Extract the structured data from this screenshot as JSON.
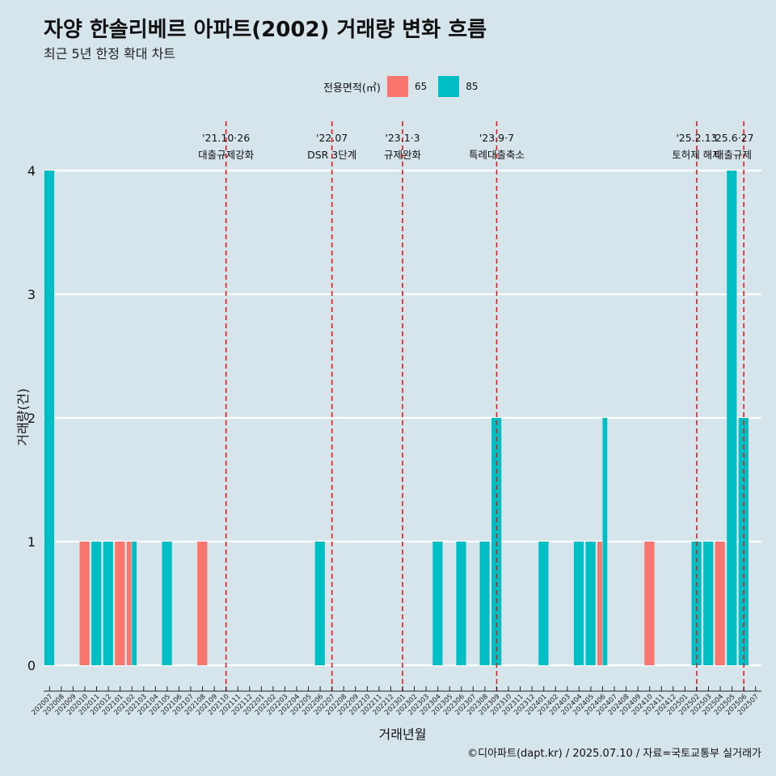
{
  "header": {
    "title": "자양 한솔리베르 아파트(2002) 거래량 변화 흐름",
    "subtitle": "최근 5년 한정 확대 차트"
  },
  "footer": {
    "caption": "©디아파트(dapt.kr) / 2025.07.10 / 자료=국토교통부 실거래가"
  },
  "colors": {
    "background": "#d6e4eb",
    "series_65": "#f8766d",
    "series_85": "#00bfc4",
    "event_line": "#e8191c",
    "grid": "#ffffff"
  },
  "chart_data": {
    "type": "bar",
    "xlabel": "거래년월",
    "ylabel": "거래량(건)",
    "ylim": [
      0,
      4
    ],
    "yticks": [
      0,
      1,
      2,
      3,
      4
    ],
    "legend": {
      "title": "전용면적(㎡)",
      "placement": "top"
    },
    "categories": [
      "202007",
      "202008",
      "202009",
      "202010",
      "202011",
      "202012",
      "202101",
      "202102",
      "202103",
      "202104",
      "202105",
      "202106",
      "202107",
      "202108",
      "202109",
      "202110",
      "202111",
      "202112",
      "202201",
      "202202",
      "202203",
      "202204",
      "202205",
      "202206",
      "202207",
      "202208",
      "202209",
      "202210",
      "202211",
      "202212",
      "202301",
      "202302",
      "202303",
      "202304",
      "202305",
      "202306",
      "202307",
      "202308",
      "202309",
      "202310",
      "202311",
      "202312",
      "202401",
      "202402",
      "202403",
      "202404",
      "202405",
      "202406",
      "202407",
      "202408",
      "202409",
      "202410",
      "202411",
      "202412",
      "202501",
      "202502",
      "202503",
      "202504",
      "202505",
      "202506",
      "202507"
    ],
    "series": [
      {
        "name": "65",
        "values": [
          0,
          0,
          0,
          1,
          0,
          0,
          1,
          1,
          0,
          0,
          0,
          0,
          0,
          1,
          0,
          0,
          0,
          0,
          0,
          0,
          0,
          0,
          0,
          0,
          0,
          0,
          0,
          0,
          0,
          0,
          0,
          0,
          0,
          0,
          0,
          0,
          0,
          0,
          0,
          0,
          0,
          0,
          0,
          0,
          0,
          0,
          0,
          1,
          0,
          0,
          0,
          1,
          0,
          0,
          0,
          0,
          0,
          1,
          0,
          0,
          0
        ]
      },
      {
        "name": "85",
        "values": [
          4,
          0,
          0,
          0,
          1,
          1,
          0,
          1,
          0,
          0,
          1,
          0,
          0,
          0,
          0,
          0,
          0,
          0,
          0,
          0,
          0,
          0,
          0,
          1,
          0,
          0,
          0,
          0,
          0,
          0,
          0,
          0,
          0,
          1,
          0,
          1,
          0,
          1,
          2,
          0,
          0,
          0,
          1,
          0,
          0,
          1,
          1,
          2,
          0,
          0,
          0,
          0,
          0,
          0,
          0,
          1,
          1,
          0,
          4,
          2,
          0
        ]
      }
    ],
    "events": [
      {
        "date": "202110",
        "label_date": "'21.10·26",
        "label_text": "대출규제강화"
      },
      {
        "date": "202207",
        "label_date": "'22.07",
        "label_text": "DSR 3단계"
      },
      {
        "date": "202301",
        "label_date": "'23.1·3",
        "label_text": "규제완화"
      },
      {
        "date": "202309",
        "label_date": "'23.9·7",
        "label_text": "특례대출축소"
      },
      {
        "date": "202502",
        "label_date": "'25.2.13",
        "label_text": "토허제 해제"
      },
      {
        "date": "202506",
        "label_date": "'25.6·27",
        "label_text": "대출규제"
      }
    ]
  }
}
